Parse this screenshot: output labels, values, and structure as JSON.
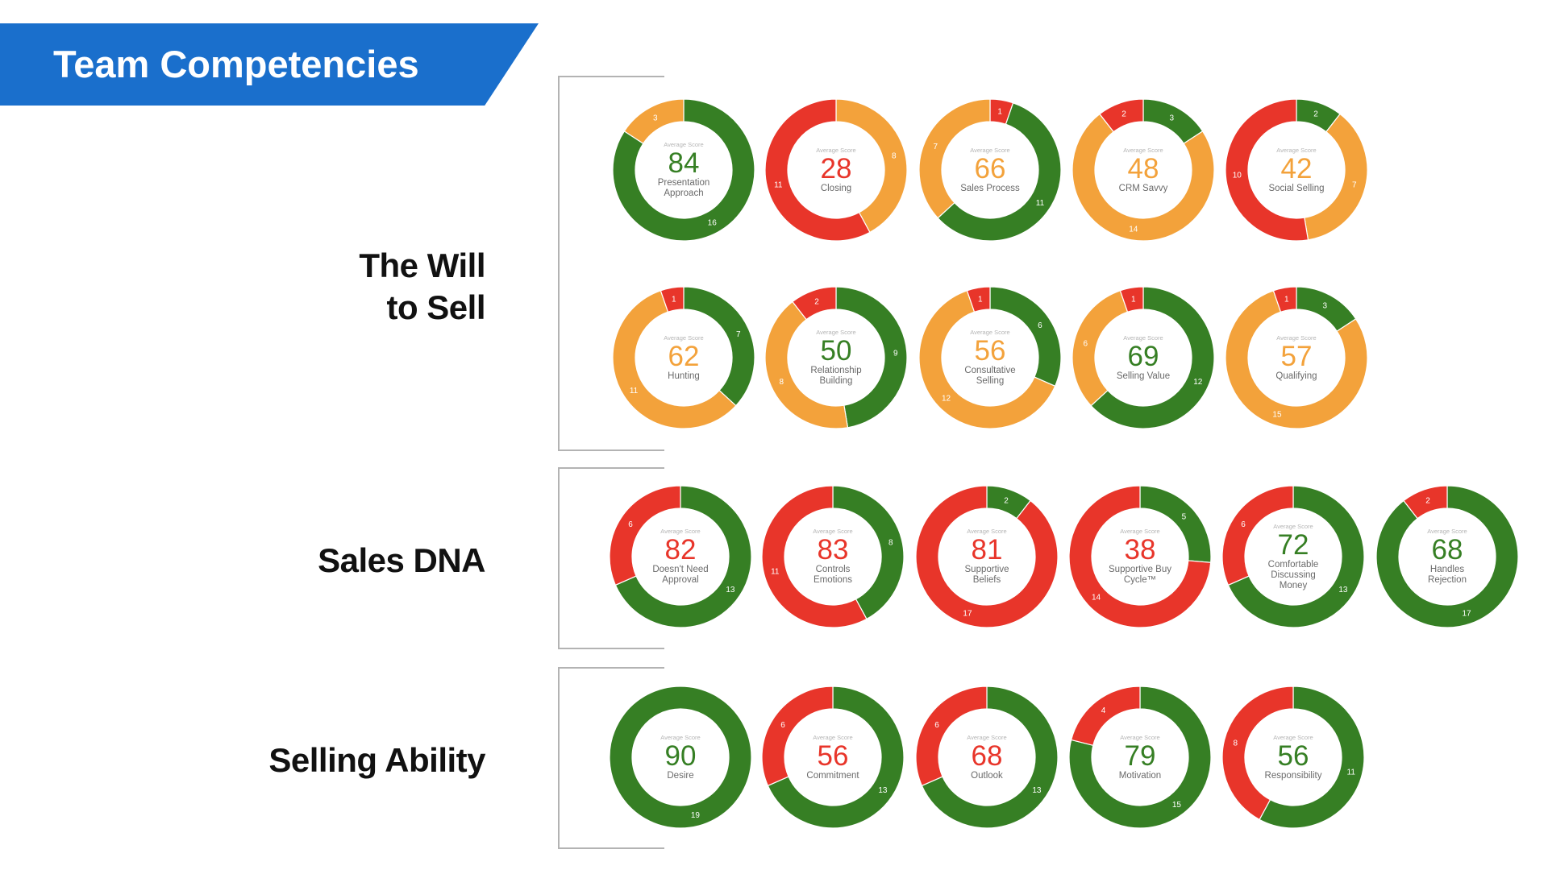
{
  "header": {
    "title": "Team Competencies"
  },
  "colors": {
    "green": "#367f24",
    "orange": "#f3a23b",
    "red": "#e8352a",
    "banner": "#1a6fcc"
  },
  "chart_data": {
    "type": "donut",
    "avg_label": "Average Score",
    "sections": [
      {
        "label_lines": [
          "The Will",
          "to Sell"
        ],
        "charts": [
          {
            "score": 84,
            "name": "Presentation Approach",
            "score_color": "green",
            "segments": [
              {
                "color": "green",
                "value": 16
              },
              {
                "color": "orange",
                "value": 3
              }
            ]
          },
          {
            "score": 28,
            "name": "Closing",
            "score_color": "red",
            "segments": [
              {
                "color": "orange",
                "value": 8
              },
              {
                "color": "red",
                "value": 11
              }
            ]
          },
          {
            "score": 66,
            "name": "Sales Process",
            "score_color": "orange",
            "segments": [
              {
                "color": "red",
                "value": 1
              },
              {
                "color": "green",
                "value": 11
              },
              {
                "color": "orange",
                "value": 7
              }
            ]
          },
          {
            "score": 48,
            "name": "CRM Savvy",
            "score_color": "orange",
            "segments": [
              {
                "color": "green",
                "value": 3
              },
              {
                "color": "orange",
                "value": 14
              },
              {
                "color": "red",
                "value": 2
              }
            ]
          },
          {
            "score": 42,
            "name": "Social Selling",
            "score_color": "orange",
            "segments": [
              {
                "color": "green",
                "value": 2
              },
              {
                "color": "orange",
                "value": 7
              },
              {
                "color": "red",
                "value": 10
              }
            ]
          },
          {
            "score": 62,
            "name": "Hunting",
            "score_color": "orange",
            "segments": [
              {
                "color": "green",
                "value": 7
              },
              {
                "color": "orange",
                "value": 11
              },
              {
                "color": "red",
                "value": 1
              }
            ]
          },
          {
            "score": 50,
            "name": "Relationship Building",
            "score_color": "green",
            "segments": [
              {
                "color": "green",
                "value": 9
              },
              {
                "color": "orange",
                "value": 8
              },
              {
                "color": "red",
                "value": 2
              }
            ]
          },
          {
            "score": 56,
            "name": "Consultative Selling",
            "score_color": "orange",
            "segments": [
              {
                "color": "green",
                "value": 6
              },
              {
                "color": "orange",
                "value": 12
              },
              {
                "color": "red",
                "value": 1
              }
            ]
          },
          {
            "score": 69,
            "name": "Selling Value",
            "score_color": "green",
            "segments": [
              {
                "color": "green",
                "value": 12
              },
              {
                "color": "orange",
                "value": 6
              },
              {
                "color": "red",
                "value": 1
              }
            ]
          },
          {
            "score": 57,
            "name": "Qualifying",
            "score_color": "orange",
            "segments": [
              {
                "color": "green",
                "value": 3
              },
              {
                "color": "orange",
                "value": 15
              },
              {
                "color": "red",
                "value": 1
              }
            ]
          }
        ]
      },
      {
        "label_lines": [
          "Sales DNA"
        ],
        "charts": [
          {
            "score": 82,
            "name": "Doesn't Need Approval",
            "score_color": "red",
            "segments": [
              {
                "color": "green",
                "value": 13
              },
              {
                "color": "red",
                "value": 6
              }
            ]
          },
          {
            "score": 83,
            "name": "Controls Emotions",
            "score_color": "red",
            "segments": [
              {
                "color": "green",
                "value": 8
              },
              {
                "color": "red",
                "value": 11
              }
            ]
          },
          {
            "score": 81,
            "name": "Supportive Beliefs",
            "score_color": "red",
            "segments": [
              {
                "color": "green",
                "value": 2
              },
              {
                "color": "red",
                "value": 17
              }
            ]
          },
          {
            "score": 38,
            "name": "Supportive Buy Cycle™",
            "score_color": "red",
            "segments": [
              {
                "color": "green",
                "value": 5
              },
              {
                "color": "red",
                "value": 14
              }
            ]
          },
          {
            "score": 72,
            "name": "Comfortable Discussing Money",
            "score_color": "green",
            "segments": [
              {
                "color": "green",
                "value": 13
              },
              {
                "color": "red",
                "value": 6
              }
            ]
          },
          {
            "score": 68,
            "name": "Handles Rejection",
            "score_color": "green",
            "segments": [
              {
                "color": "green",
                "value": 17
              },
              {
                "color": "red",
                "value": 2
              }
            ]
          }
        ]
      },
      {
        "label_lines": [
          "Selling Ability"
        ],
        "charts": [
          {
            "score": 90,
            "name": "Desire",
            "score_color": "green",
            "segments": [
              {
                "color": "green",
                "value": 19
              }
            ]
          },
          {
            "score": 56,
            "name": "Commitment",
            "score_color": "red",
            "segments": [
              {
                "color": "green",
                "value": 13
              },
              {
                "color": "red",
                "value": 6
              }
            ]
          },
          {
            "score": 68,
            "name": "Outlook",
            "score_color": "red",
            "segments": [
              {
                "color": "green",
                "value": 13
              },
              {
                "color": "red",
                "value": 6
              }
            ]
          },
          {
            "score": 79,
            "name": "Motivation",
            "score_color": "green",
            "segments": [
              {
                "color": "green",
                "value": 15
              },
              {
                "color": "red",
                "value": 4
              }
            ]
          },
          {
            "score": 56,
            "name": "Responsibility",
            "score_color": "green",
            "segments": [
              {
                "color": "green",
                "value": 11
              },
              {
                "color": "red",
                "value": 8
              }
            ]
          }
        ]
      }
    ]
  }
}
